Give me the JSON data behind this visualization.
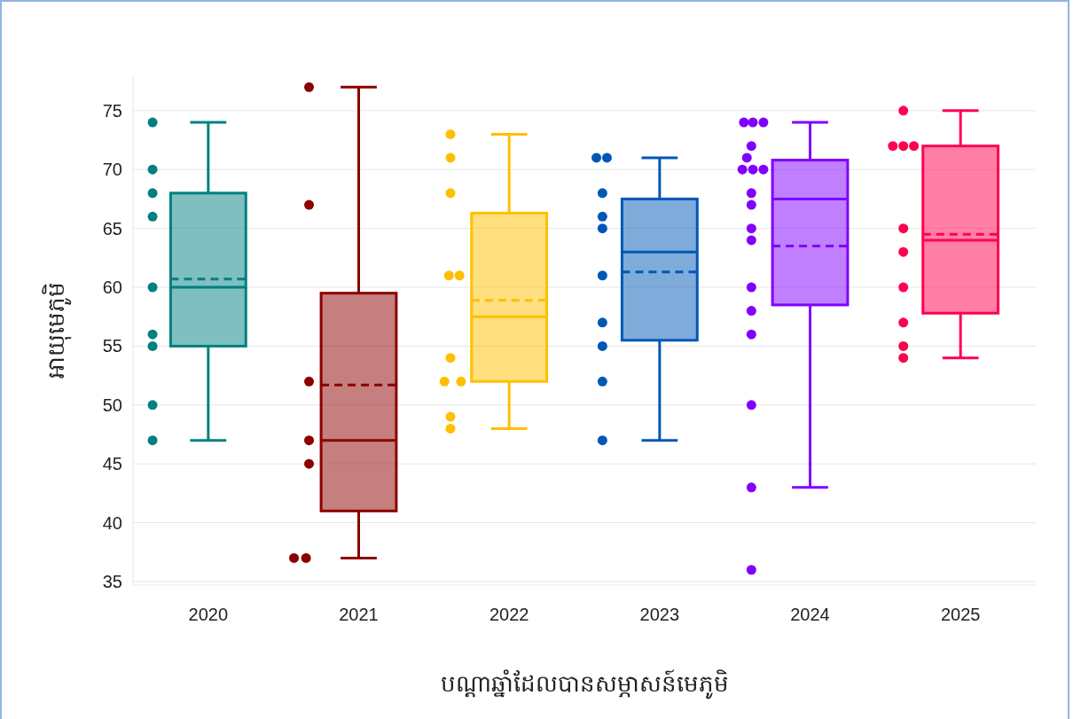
{
  "chart_data": {
    "type": "box",
    "xlabel": "បណ្តាឆ្នាំដែលបានសម្ភាសន៍មេភូមិ",
    "ylabel": "អាយុមេភូមិ",
    "x": [
      2020,
      2021,
      2022,
      2023,
      2024,
      2025
    ],
    "colors": [
      "#008080",
      "#8b0000",
      "#ffbf00",
      "#0057b8",
      "#8000ff",
      "#ff0050"
    ],
    "boxes": [
      {
        "low": 47,
        "q1": 55,
        "median": 60,
        "q3": 68,
        "high": 74,
        "mean": 60.7
      },
      {
        "low": 37,
        "q1": 41,
        "median": 47,
        "q3": 59.5,
        "high": 77,
        "mean": 51.7
      },
      {
        "low": 48,
        "q1": 52,
        "median": 57.5,
        "q3": 66.3,
        "high": 73,
        "mean": 58.9
      },
      {
        "low": 47,
        "q1": 55.5,
        "median": 63,
        "q3": 67.5,
        "high": 71,
        "mean": 61.3
      },
      {
        "low": 43,
        "q1": 58.5,
        "median": 67.5,
        "q3": 70.8,
        "high": 74,
        "mean": 63.5
      },
      {
        "low": 54,
        "q1": 57.8,
        "median": 64,
        "q3": 72,
        "high": 75,
        "mean": 64.5
      }
    ],
    "series": [
      {
        "type": "scatter",
        "color": "#008080",
        "x": [
          2019.63,
          2019.63,
          2019.63,
          2019.63,
          2019.63,
          2019.63,
          2019.63,
          2019.63,
          2019.63
        ],
        "values": [
          74,
          70,
          68,
          66,
          60,
          56,
          55,
          50,
          47
        ]
      },
      {
        "type": "scatter",
        "color": "#8b0000",
        "x": [
          2020.67,
          2020.67,
          2020.67,
          2020.67,
          2020.67,
          2020.57,
          2020.65
        ],
        "values": [
          77,
          67,
          52,
          47,
          45,
          37,
          37
        ]
      },
      {
        "type": "scatter",
        "color": "#ffbf00",
        "x": [
          2021.61,
          2021.61,
          2021.61,
          2021.6,
          2021.67,
          2021.61,
          2021.57,
          2021.68,
          2021.61,
          2021.61
        ],
        "values": [
          73,
          71,
          68,
          61,
          61,
          54,
          52,
          52,
          49,
          48
        ]
      },
      {
        "type": "scatter",
        "color": "#0057b8",
        "x": [
          2022.58,
          2022.65,
          2022.62,
          2022.62,
          2022.62,
          2022.62,
          2022.62,
          2022.62,
          2022.62,
          2022.62
        ],
        "values": [
          71,
          71,
          68,
          66,
          65,
          61,
          57,
          55,
          52,
          47
        ]
      },
      {
        "type": "scatter",
        "color": "#8000ff",
        "x": [
          2023.56,
          2023.62,
          2023.69,
          2023.61,
          2023.58,
          2023.55,
          2023.62,
          2023.69,
          2023.61,
          2023.61,
          2023.61,
          2023.61,
          2023.61,
          2023.61,
          2023.61,
          2023.61,
          2023.61,
          2023.61
        ],
        "values": [
          74,
          74,
          74,
          72,
          71,
          70,
          70,
          70,
          68,
          67,
          65,
          64,
          60,
          58,
          56,
          50,
          43,
          36
        ]
      },
      {
        "type": "scatter",
        "color": "#ff0050",
        "x": [
          2024.62,
          2024.55,
          2024.62,
          2024.69,
          2024.62,
          2024.62,
          2024.62,
          2024.62,
          2024.62,
          2024.62
        ],
        "values": [
          75,
          72,
          72,
          72,
          65,
          63,
          60,
          57,
          55,
          54
        ]
      }
    ],
    "xlim": [
      2019.5,
      2025.5
    ],
    "xticks": [
      2020,
      2021,
      2022,
      2023,
      2024,
      2025
    ],
    "ylim": [
      34.7,
      78
    ],
    "yticks": [
      35,
      40,
      45,
      50,
      55,
      60,
      65,
      70,
      75
    ],
    "grid": "y",
    "marker": "circle"
  }
}
